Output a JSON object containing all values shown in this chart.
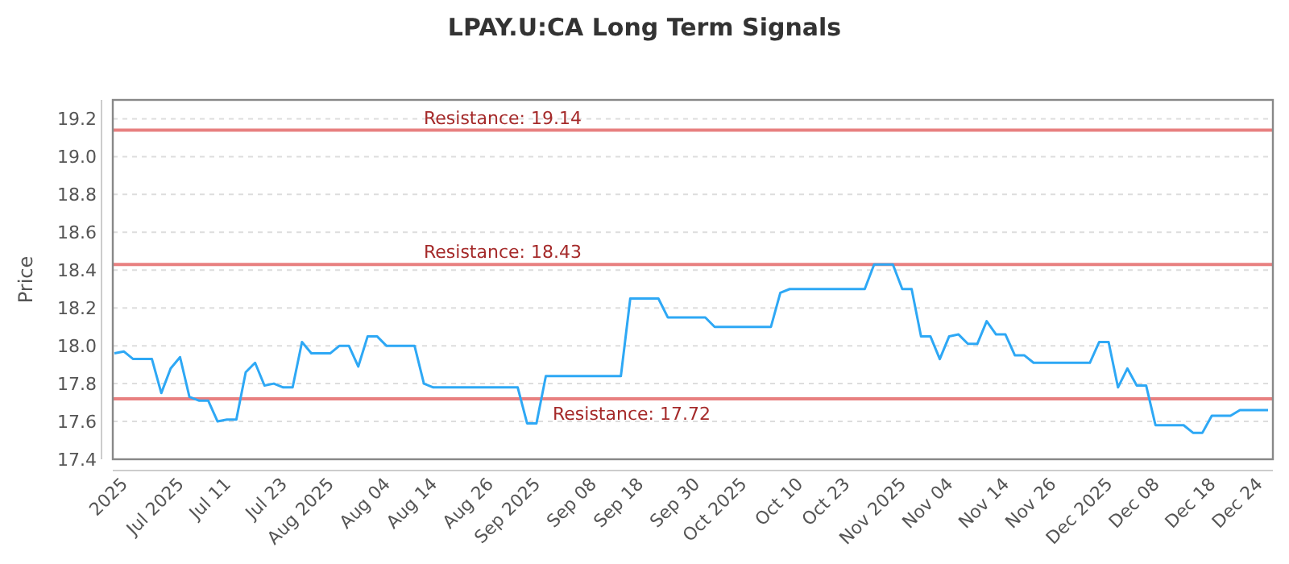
{
  "chart_data": {
    "type": "line",
    "title": "LPAY.U:CA Long Term Signals",
    "ylabel": "Price",
    "categories": [
      null,
      "2025",
      null,
      null,
      null,
      null,
      null,
      "Jul 2025",
      null,
      null,
      null,
      null,
      "Jul 11",
      null,
      null,
      null,
      null,
      null,
      "Jul 23",
      null,
      null,
      null,
      null,
      "Aug 2025",
      null,
      null,
      null,
      null,
      null,
      "Aug 04",
      null,
      null,
      null,
      null,
      "Aug 14",
      null,
      null,
      null,
      null,
      null,
      "Aug 26",
      null,
      null,
      null,
      null,
      "Sep 2025",
      null,
      null,
      null,
      null,
      null,
      "Sep 08",
      null,
      null,
      null,
      null,
      "Sep 18",
      null,
      null,
      null,
      null,
      null,
      "Sep 30",
      null,
      null,
      null,
      null,
      "Oct 2025",
      null,
      null,
      null,
      null,
      null,
      "Oct 10",
      null,
      null,
      null,
      null,
      "Oct 23",
      null,
      null,
      null,
      null,
      null,
      "Nov 2025",
      null,
      null,
      null,
      null,
      "Nov 04",
      null,
      null,
      null,
      null,
      null,
      "Nov 14",
      null,
      null,
      null,
      null,
      "Nov 26",
      null,
      null,
      null,
      null,
      null,
      "Dec 2025",
      null,
      null,
      null,
      null,
      "Dec 08",
      null,
      null,
      null,
      null,
      null,
      "Dec 18",
      null,
      null,
      null,
      null,
      "Dec 24",
      null
    ],
    "series": [
      {
        "color": "#2ea8f5",
        "values": [
          17.96,
          17.97,
          17.93,
          17.93,
          17.93,
          17.75,
          17.88,
          17.94,
          17.73,
          17.71,
          17.71,
          17.6,
          17.61,
          17.61,
          17.86,
          17.91,
          17.79,
          17.8,
          17.78,
          17.78,
          18.02,
          17.96,
          17.96,
          17.96,
          18.0,
          18.0,
          17.89,
          18.05,
          18.05,
          18.0,
          18.0,
          18.0,
          18.0,
          17.8,
          17.78,
          17.78,
          17.78,
          17.78,
          17.78,
          17.78,
          17.78,
          17.78,
          17.78,
          17.78,
          17.59,
          17.59,
          17.84,
          17.84,
          17.84,
          17.84,
          17.84,
          17.84,
          17.84,
          17.84,
          17.84,
          18.25,
          18.25,
          18.25,
          18.25,
          18.15,
          18.15,
          18.15,
          18.15,
          18.15,
          18.1,
          18.1,
          18.1,
          18.1,
          18.1,
          18.1,
          18.1,
          18.28,
          18.3,
          18.3,
          18.3,
          18.3,
          18.3,
          18.3,
          18.3,
          18.3,
          18.3,
          18.43,
          18.43,
          18.43,
          18.3,
          18.3,
          18.05,
          18.05,
          17.93,
          18.05,
          18.06,
          18.01,
          18.01,
          18.13,
          18.06,
          18.06,
          17.95,
          17.95,
          17.91,
          17.91,
          17.91,
          17.91,
          17.91,
          17.91,
          17.91,
          18.02,
          18.02,
          17.78,
          17.88,
          17.79,
          17.79,
          17.58,
          17.58,
          17.58,
          17.58,
          17.54,
          17.54,
          17.63,
          17.63,
          17.63,
          17.66,
          17.66,
          17.66,
          17.66
        ]
      }
    ],
    "ylim": [
      17.4,
      19.3
    ],
    "yticks": [
      17.4,
      17.6,
      17.8,
      {
        "value": 18,
        "label": "18.0"
      },
      18.2,
      18.4,
      18.6,
      18.8,
      {
        "value": 19,
        "label": "19.0"
      },
      19.2
    ],
    "grid": "y",
    "line_style": "solid",
    "marker": "none",
    "ref_lines": [
      {
        "axis": "y",
        "value": 19.14,
        "label": "Resistance: 19.14",
        "color": "#e88080"
      },
      {
        "axis": "y",
        "value": 18.43,
        "label": "Resistance: 18.43",
        "color": "#e88080"
      },
      {
        "axis": "y",
        "value": 17.72,
        "label": "Resistance: 17.72",
        "color": "#e88080"
      }
    ]
  }
}
